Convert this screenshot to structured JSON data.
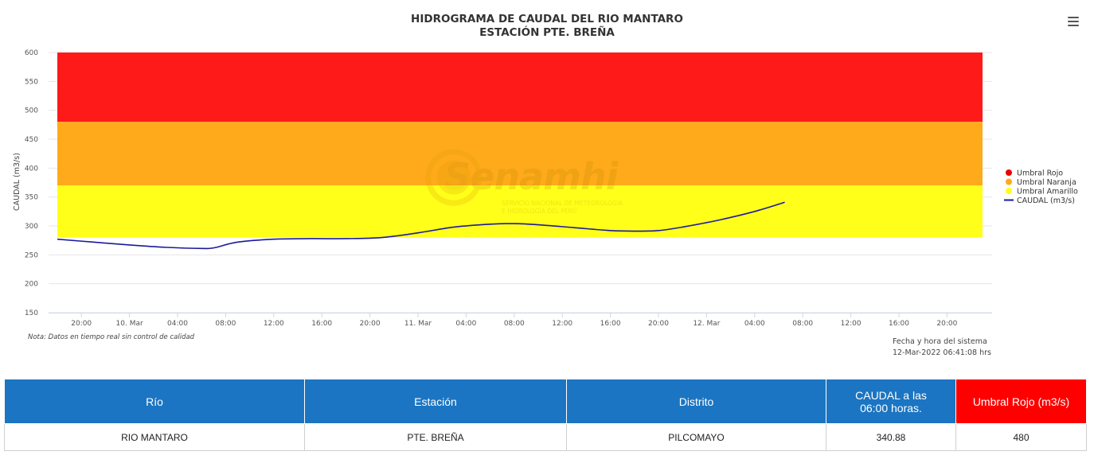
{
  "chart_data": {
    "type": "line",
    "title": "HIDROGRAMA DE CAUDAL DEL RIO MANTARO",
    "subtitle": "ESTACIÓN PTE. BREÑA",
    "ylabel": "CAUDAL (m3/s)",
    "ylim": [
      150,
      600
    ],
    "yticks": [
      150,
      200,
      250,
      300,
      350,
      400,
      450,
      500,
      550,
      600
    ],
    "x_start_hours": 0,
    "x_end_hours": 60.5,
    "xticks": [
      {
        "h": 2,
        "label": "20:00"
      },
      {
        "h": 6,
        "label": "10. Mar"
      },
      {
        "h": 10,
        "label": "04:00"
      },
      {
        "h": 14,
        "label": "08:00"
      },
      {
        "h": 18,
        "label": "12:00"
      },
      {
        "h": 22,
        "label": "16:00"
      },
      {
        "h": 26,
        "label": "20:00"
      },
      {
        "h": 30,
        "label": "11. Mar"
      },
      {
        "h": 34,
        "label": "04:00"
      },
      {
        "h": 38,
        "label": "08:00"
      },
      {
        "h": 42,
        "label": "12:00"
      },
      {
        "h": 46,
        "label": "16:00"
      },
      {
        "h": 50,
        "label": "20:00"
      },
      {
        "h": 54,
        "label": "12. Mar"
      },
      {
        "h": 58,
        "label": "04:00"
      },
      {
        "h": 62,
        "label": "08:00"
      },
      {
        "h": 66,
        "label": "12:00"
      },
      {
        "h": 70,
        "label": "16:00"
      },
      {
        "h": 74,
        "label": "20:00"
      }
    ],
    "x_axis_max_hours": 78,
    "bands": [
      {
        "name": "Umbral Rojo",
        "from": 480,
        "to": 600,
        "color": "#ff1a1a"
      },
      {
        "name": "Umbral Naranja",
        "from": 370,
        "to": 480,
        "color": "#ffaa1a"
      },
      {
        "name": "Umbral Amarillo",
        "from": 280,
        "to": 370,
        "color": "#ffff1a"
      }
    ],
    "series": [
      {
        "name": "CAUDAL (m3/s)",
        "color": "#1a1a99",
        "points": [
          [
            0,
            277
          ],
          [
            3,
            272
          ],
          [
            6,
            267
          ],
          [
            9,
            263
          ],
          [
            12,
            261
          ],
          [
            13,
            262
          ],
          [
            15,
            272
          ],
          [
            18,
            277
          ],
          [
            21,
            278
          ],
          [
            24,
            278
          ],
          [
            27,
            280
          ],
          [
            30,
            288
          ],
          [
            33,
            298
          ],
          [
            36,
            303
          ],
          [
            38,
            304
          ],
          [
            40,
            302
          ],
          [
            43,
            297
          ],
          [
            46,
            292
          ],
          [
            48,
            291
          ],
          [
            50,
            292
          ],
          [
            52,
            298
          ],
          [
            55,
            310
          ],
          [
            58,
            325
          ],
          [
            60.5,
            340.88
          ]
        ]
      }
    ],
    "legend": {
      "position": "right"
    }
  },
  "menu_icon": "hamburger-menu-icon",
  "note": "Nota: Datos en tiempo real sin control de calidad",
  "system_time": {
    "label": "Fecha y hora del sistema",
    "value": "12-Mar-2022 06:41:08 hrs"
  },
  "watermark": {
    "name": "Senamhi",
    "line1": "SERVICIO NACIONAL DE METEOROLOGÍA",
    "line2": "E HIDROLOGÍA DEL PERÚ"
  },
  "table": {
    "headers": {
      "rio": "Río",
      "estacion": "Estación",
      "distrito": "Distrito",
      "caudal_line1": "CAUDAL a las",
      "caudal_line2": "06:00 horas.",
      "umbral": "Umbral Rojo (m3/s)"
    },
    "row": {
      "rio": "RIO MANTARO",
      "estacion": "PTE. BREÑA",
      "distrito": "PILCOMAYO",
      "caudal": "340.88",
      "umbral": "480"
    }
  }
}
